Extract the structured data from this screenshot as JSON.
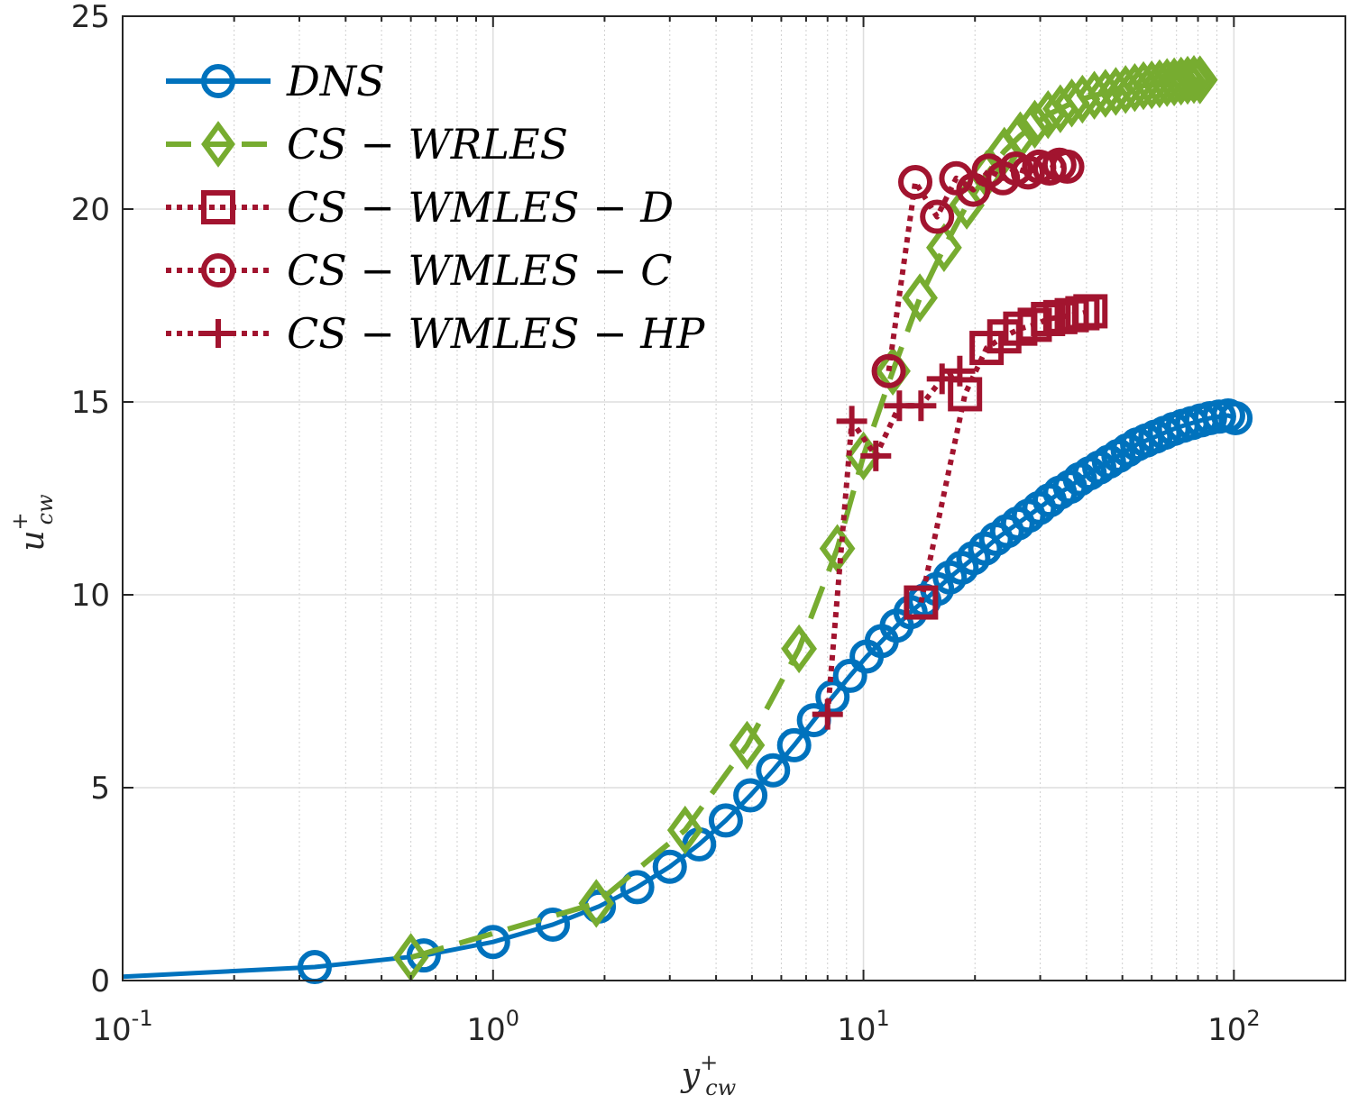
{
  "chart_data": {
    "type": "line",
    "xscale": "log",
    "xlim": [
      0.1,
      200
    ],
    "ylim": [
      0,
      25
    ],
    "grid": true,
    "legend_location": "top-left",
    "xlabel": {
      "main": "y",
      "sup": "+",
      "sub": "cw"
    },
    "ylabel": {
      "main": "u",
      "sup": "+",
      "sub": "cw"
    },
    "x_ticks": [
      {
        "base": "10",
        "exp": "-1",
        "value": 0.1
      },
      {
        "base": "10",
        "exp": "0",
        "value": 1
      },
      {
        "base": "10",
        "exp": "1",
        "value": 10
      },
      {
        "base": "10",
        "exp": "2",
        "value": 100
      }
    ],
    "y_ticks": [
      "0",
      "5",
      "10",
      "15",
      "20",
      "25"
    ],
    "series": [
      {
        "name": "DNS",
        "legend_label": "DNS",
        "color": "#0072BD",
        "line_style": "solid",
        "marker": "circle",
        "x": [
          0.33,
          0.65,
          1.0,
          1.45,
          1.93,
          2.45,
          3.0,
          3.6,
          4.25,
          4.95,
          5.7,
          6.5,
          7.35,
          8.25,
          9.2,
          10.2,
          11.2,
          12.3,
          13.4,
          14.6,
          15.8,
          17.1,
          18.4,
          19.8,
          21.3,
          22.8,
          24.4,
          26.1,
          27.9,
          29.8,
          31.8,
          33.9,
          36.1,
          38.4,
          40.8,
          43.3,
          46.0,
          48.8,
          51.7,
          54.8,
          58.0,
          61.4,
          65.0,
          68.8,
          72.8,
          77.0,
          81.5,
          86.2,
          91.2,
          96.5,
          101.0
        ],
        "y": [
          0.35,
          0.65,
          1.0,
          1.45,
          1.92,
          2.42,
          2.95,
          3.53,
          4.15,
          4.8,
          5.45,
          6.1,
          6.75,
          7.35,
          7.9,
          8.4,
          8.8,
          9.2,
          9.55,
          9.85,
          10.15,
          10.45,
          10.7,
          10.95,
          11.2,
          11.45,
          11.65,
          11.85,
          12.05,
          12.25,
          12.45,
          12.65,
          12.8,
          13.0,
          13.15,
          13.3,
          13.45,
          13.6,
          13.75,
          13.9,
          14.0,
          14.1,
          14.2,
          14.3,
          14.38,
          14.45,
          14.52,
          14.58,
          14.62,
          14.65,
          14.58
        ]
      },
      {
        "name": "CS-WRLES",
        "legend_label": "CS − WRLES",
        "color": "#77AC30",
        "line_style": "dashed",
        "marker": "diamond",
        "x": [
          0.6,
          1.9,
          3.3,
          4.85,
          6.7,
          8.5,
          10.0,
          12.0,
          14.2,
          16.5,
          19.0,
          21.5,
          24.0,
          26.5,
          29.0,
          31.5,
          34.0,
          36.5,
          39.0,
          42.0,
          45.0,
          48.0,
          51.0,
          54.0,
          57.0,
          60.0,
          63.0,
          66.0,
          69.0,
          72.0,
          75.0,
          78.0,
          81.0
        ],
        "y": [
          0.6,
          2.0,
          3.9,
          6.1,
          8.6,
          11.2,
          13.6,
          15.8,
          17.7,
          19.0,
          20.1,
          20.9,
          21.5,
          21.9,
          22.2,
          22.45,
          22.6,
          22.75,
          22.85,
          22.95,
          23.0,
          23.05,
          23.1,
          23.15,
          23.2,
          23.22,
          23.25,
          23.28,
          23.3,
          23.32,
          23.34,
          23.36,
          23.35
        ]
      },
      {
        "name": "CS-WMLES-D",
        "legend_label": "CS − WMLES − D",
        "color": "#A2142F",
        "line_style": "dotted",
        "marker": "square",
        "x": [
          14.3,
          18.8,
          21.5,
          24.0,
          26.5,
          29.0,
          31.5,
          34.0,
          36.5,
          39.0,
          41.0
        ],
        "y": [
          9.8,
          15.2,
          16.4,
          16.7,
          16.9,
          17.0,
          17.15,
          17.2,
          17.25,
          17.3,
          17.35
        ]
      },
      {
        "name": "CS-WMLES-C",
        "legend_label": "CS − WMLES − C",
        "color": "#A2142F",
        "line_style": "dotted",
        "marker": "circle",
        "x": [
          11.7,
          13.8,
          15.8,
          17.8,
          19.8,
          21.8,
          23.8,
          25.8,
          27.8,
          29.8,
          31.8,
          33.8,
          35.5
        ],
        "y": [
          15.8,
          20.7,
          19.8,
          20.8,
          20.5,
          21.0,
          20.8,
          21.05,
          20.95,
          21.1,
          21.05,
          21.15,
          21.1
        ]
      },
      {
        "name": "CS-WMLES-HP",
        "legend_label": "CS − WMLES − HP",
        "color": "#A2142F",
        "line_style": "dotted",
        "marker": "plus",
        "x": [
          8.0,
          9.3,
          10.8,
          12.5,
          14.3,
          16.3,
          18.2
        ],
        "y": [
          6.9,
          14.5,
          13.6,
          14.9,
          14.9,
          15.6,
          15.8
        ]
      }
    ]
  }
}
